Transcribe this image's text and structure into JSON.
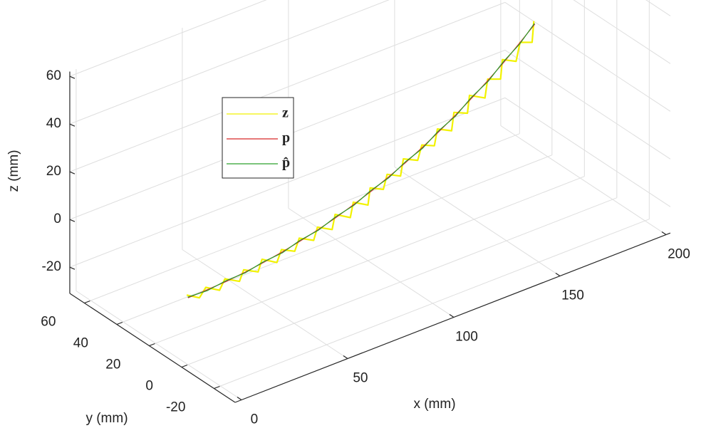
{
  "chart_data": {
    "type": "line3d",
    "xlabel": "x (mm)",
    "ylabel": "y (mm)",
    "zlabel": "z (mm)",
    "xlim": [
      -3,
      202
    ],
    "ylim": [
      -33,
      69
    ],
    "zlim": [
      -31,
      62
    ],
    "xticks": [
      0,
      50,
      100,
      150,
      200
    ],
    "yticks": [
      -20,
      0,
      20,
      40,
      60
    ],
    "zticks": [
      -20,
      0,
      20,
      40,
      60
    ],
    "grid": true,
    "legend": "upper left",
    "series": [
      {
        "name": "z",
        "color": "#f2f200",
        "x": [
          0,
          5,
          10,
          15,
          20,
          25,
          30,
          35,
          40,
          45,
          50,
          55,
          60,
          65,
          70,
          75,
          80,
          85,
          90,
          95,
          100,
          105,
          110,
          115,
          120,
          125,
          130,
          135,
          140,
          145,
          150,
          155,
          160,
          165,
          170,
          175,
          180,
          185,
          190,
          195,
          200
        ],
        "y": [
          0.8,
          -0.5,
          2.1,
          0.2,
          3.4,
          1.0,
          4.9,
          2.6,
          6.7,
          4.1,
          7.8,
          6.2,
          9.9,
          7.6,
          11.8,
          9.3,
          14.0,
          11.2,
          15.9,
          13.4,
          18.6,
          17.0,
          21.2,
          19.5,
          24.3,
          22.0,
          26.0,
          24.8,
          29.5,
          27.3,
          32.4,
          30.6,
          35.9,
          32.9,
          37.8,
          36.4,
          41.8,
          39.9,
          44.0,
          43.1,
          48.6
        ],
        "z": [
          -2.2,
          -4.5,
          -3.0,
          -5.1,
          -3.5,
          -5.2,
          -3.8,
          -5.4,
          -3.7,
          -5.6,
          -3.6,
          -5.3,
          -3.2,
          -4.8,
          -2.9,
          -4.5,
          -2.0,
          -3.8,
          -1.2,
          -3.0,
          0.1,
          -1.5,
          1.2,
          -0.5,
          2.8,
          1.5,
          4.4,
          2.9,
          6.1,
          4.6,
          8.3,
          7.0,
          10.4,
          8.9,
          12.9,
          11.8,
          15.8,
          14.2,
          18.6,
          17.3,
          22.0
        ]
      },
      {
        "name": "p",
        "color": "#d62728",
        "x": [
          0,
          10,
          20,
          30,
          40,
          50,
          60,
          70,
          80,
          90,
          100,
          110,
          120,
          130,
          140,
          150,
          160,
          170,
          180,
          190,
          200
        ],
        "y": [
          0,
          1.3,
          2.6,
          4.1,
          5.8,
          7.5,
          9.4,
          11.3,
          13.4,
          15.7,
          18,
          20.5,
          23,
          25.7,
          28.6,
          31.5,
          34.6,
          37.7,
          41,
          44.5,
          48
        ],
        "z": [
          -3,
          -3.7,
          -4.2,
          -4.5,
          -4.6,
          -4.5,
          -4.2,
          -3.7,
          -3,
          -2.1,
          -1,
          0.3,
          1.8,
          3.5,
          5.4,
          7.5,
          9.8,
          12.3,
          15,
          17.9,
          21
        ]
      },
      {
        "name": "p̂",
        "color": "#2ca02c",
        "x": [
          0,
          10,
          20,
          30,
          40,
          50,
          60,
          70,
          80,
          90,
          100,
          110,
          120,
          130,
          140,
          150,
          160,
          170,
          180,
          190,
          200
        ],
        "y": [
          0.2,
          1.1,
          2.8,
          4.0,
          5.9,
          7.3,
          9.6,
          11.2,
          13.6,
          15.5,
          18.2,
          20.3,
          23.2,
          25.5,
          28.8,
          31.3,
          34.8,
          37.5,
          41.2,
          44.3,
          48.2
        ],
        "z": [
          -2.8,
          -3.9,
          -4.0,
          -4.7,
          -4.4,
          -4.7,
          -4.0,
          -3.9,
          -2.8,
          -2.3,
          -0.8,
          0.1,
          2.0,
          3.3,
          5.6,
          7.3,
          10.0,
          12.1,
          15.2,
          17.7,
          21.2
        ]
      }
    ]
  }
}
